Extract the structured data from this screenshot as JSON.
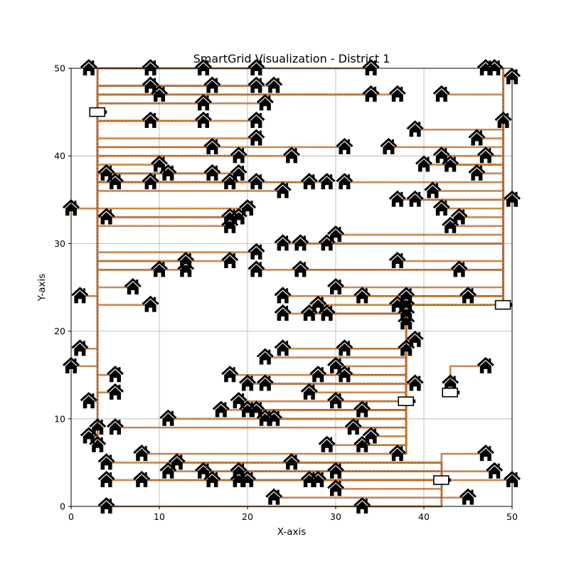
{
  "chart_data": {
    "type": "scatter",
    "title": "SmartGrid Visualization - District 1",
    "xlabel": "X-axis",
    "ylabel": "Y-axis",
    "xlim": [
      0,
      50
    ],
    "ylim": [
      0,
      50
    ],
    "xticks": [
      0,
      10,
      20,
      30,
      40,
      50
    ],
    "yticks": [
      0,
      10,
      20,
      30,
      40,
      50
    ],
    "grid": true,
    "colors": {
      "cable_dark": "#9c5a2c",
      "cable_orange": "#ff9a1f",
      "grid": "#b0b0b0",
      "marker": "#000000"
    },
    "batteries": [
      {
        "x": 3,
        "y": 45
      },
      {
        "x": 49,
        "y": 23
      },
      {
        "x": 38,
        "y": 12
      },
      {
        "x": 43,
        "y": 13
      },
      {
        "x": 42,
        "y": 3
      }
    ],
    "houses": [
      [
        2,
        50
      ],
      [
        9,
        50
      ],
      [
        15,
        50
      ],
      [
        21,
        50
      ],
      [
        34,
        50
      ],
      [
        47,
        50
      ],
      [
        48,
        50
      ],
      [
        50,
        49
      ],
      [
        9,
        48
      ],
      [
        10,
        47
      ],
      [
        16,
        48
      ],
      [
        21,
        48
      ],
      [
        23,
        48
      ],
      [
        34,
        47
      ],
      [
        37,
        47
      ],
      [
        42,
        47
      ],
      [
        15,
        46
      ],
      [
        22,
        46
      ],
      [
        9,
        44
      ],
      [
        15,
        44
      ],
      [
        21,
        44
      ],
      [
        39,
        43
      ],
      [
        49,
        44
      ],
      [
        46,
        42
      ],
      [
        21,
        42
      ],
      [
        16,
        41
      ],
      [
        19,
        40
      ],
      [
        25,
        40
      ],
      [
        31,
        41
      ],
      [
        36,
        41
      ],
      [
        42,
        40
      ],
      [
        47,
        40
      ],
      [
        10,
        39
      ],
      [
        40,
        39
      ],
      [
        43,
        39
      ],
      [
        4,
        38
      ],
      [
        11,
        38
      ],
      [
        16,
        38
      ],
      [
        19,
        38
      ],
      [
        46,
        38
      ],
      [
        5,
        37
      ],
      [
        9,
        37
      ],
      [
        18,
        37
      ],
      [
        21,
        37
      ],
      [
        27,
        37
      ],
      [
        29,
        37
      ],
      [
        31,
        37
      ],
      [
        24,
        36
      ],
      [
        41,
        36
      ],
      [
        37,
        35
      ],
      [
        39,
        35
      ],
      [
        50,
        35
      ],
      [
        0,
        34
      ],
      [
        20,
        34
      ],
      [
        42,
        34
      ],
      [
        4,
        33
      ],
      [
        18,
        33
      ],
      [
        19,
        33
      ],
      [
        44,
        33
      ],
      [
        18,
        32
      ],
      [
        43,
        32
      ],
      [
        30,
        31
      ],
      [
        24,
        30
      ],
      [
        26,
        30
      ],
      [
        29,
        30
      ],
      [
        21,
        29
      ],
      [
        13,
        28
      ],
      [
        18,
        28
      ],
      [
        37,
        28
      ],
      [
        10,
        27
      ],
      [
        13,
        27
      ],
      [
        21,
        27
      ],
      [
        26,
        27
      ],
      [
        44,
        27
      ],
      [
        7,
        25
      ],
      [
        30,
        25
      ],
      [
        1,
        24
      ],
      [
        24,
        24
      ],
      [
        33,
        24
      ],
      [
        38,
        24
      ],
      [
        45,
        24
      ],
      [
        9,
        23
      ],
      [
        37,
        23
      ],
      [
        28,
        23
      ],
      [
        38,
        23
      ],
      [
        24,
        22
      ],
      [
        27,
        22
      ],
      [
        29,
        22
      ],
      [
        38,
        22
      ],
      [
        38,
        21
      ],
      [
        39,
        19
      ],
      [
        1,
        18
      ],
      [
        24,
        18
      ],
      [
        31,
        18
      ],
      [
        38,
        18
      ],
      [
        22,
        17
      ],
      [
        0,
        16
      ],
      [
        30,
        16
      ],
      [
        47,
        16
      ],
      [
        5,
        15
      ],
      [
        18,
        15
      ],
      [
        28,
        15
      ],
      [
        31,
        15
      ],
      [
        20,
        14
      ],
      [
        22,
        14
      ],
      [
        39,
        14
      ],
      [
        43,
        14
      ],
      [
        5,
        13
      ],
      [
        27,
        13
      ],
      [
        2,
        12
      ],
      [
        19,
        12
      ],
      [
        30,
        12
      ],
      [
        17,
        11
      ],
      [
        20,
        11
      ],
      [
        21,
        11
      ],
      [
        33,
        11
      ],
      [
        11,
        10
      ],
      [
        22,
        10
      ],
      [
        23,
        10
      ],
      [
        3,
        9
      ],
      [
        5,
        9
      ],
      [
        32,
        9
      ],
      [
        2,
        8
      ],
      [
        34,
        8
      ],
      [
        3,
        7
      ],
      [
        8,
        6
      ],
      [
        29,
        7
      ],
      [
        33,
        7
      ],
      [
        37,
        6
      ],
      [
        47,
        6
      ],
      [
        4,
        5
      ],
      [
        12,
        5
      ],
      [
        25,
        5
      ],
      [
        11,
        4
      ],
      [
        15,
        4
      ],
      [
        19,
        4
      ],
      [
        48,
        4
      ],
      [
        4,
        3
      ],
      [
        8,
        3
      ],
      [
        16,
        3
      ],
      [
        19,
        3
      ],
      [
        20,
        3
      ],
      [
        27,
        3
      ],
      [
        28,
        3
      ],
      [
        30,
        4
      ],
      [
        50,
        3
      ],
      [
        23,
        1
      ],
      [
        30,
        2
      ],
      [
        45,
        1
      ],
      [
        4,
        0
      ],
      [
        33,
        0
      ]
    ]
  }
}
